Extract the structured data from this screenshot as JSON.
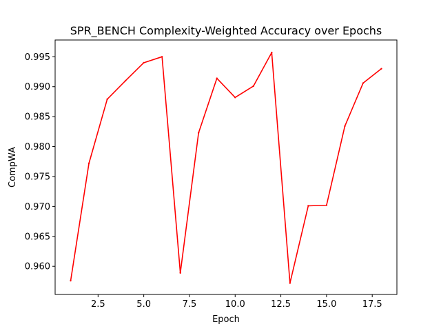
{
  "chart_data": {
    "type": "line",
    "title": "SPR_BENCH Complexity-Weighted Accuracy over Epochs",
    "xlabel": "Epoch",
    "ylabel": "CompWA",
    "xlim": [
      0.15,
      18.85
    ],
    "ylim": [
      0.9553,
      0.9978
    ],
    "xticks": [
      2.5,
      5.0,
      7.5,
      10.0,
      12.5,
      15.0,
      17.5
    ],
    "xtick_labels": [
      "2.5",
      "5.0",
      "7.5",
      "10.0",
      "12.5",
      "15.0",
      "17.5"
    ],
    "yticks": [
      0.96,
      0.965,
      0.97,
      0.975,
      0.98,
      0.985,
      0.99,
      0.995
    ],
    "ytick_labels": [
      "0.960",
      "0.965",
      "0.970",
      "0.975",
      "0.980",
      "0.985",
      "0.990",
      "0.995"
    ],
    "grid": false,
    "series": [
      {
        "color": "#ff0000",
        "x": [
          1,
          2,
          3,
          4,
          5,
          6,
          7,
          8,
          9,
          10,
          11,
          12,
          13,
          14,
          15,
          16,
          17,
          18
        ],
        "y": [
          0.9576,
          0.9772,
          0.9879,
          0.991,
          0.994,
          0.995,
          0.9589,
          0.9823,
          0.9914,
          0.9882,
          0.9901,
          0.9957,
          0.9572,
          0.9701,
          0.9702,
          0.9834,
          0.9906,
          0.993
        ]
      }
    ]
  }
}
